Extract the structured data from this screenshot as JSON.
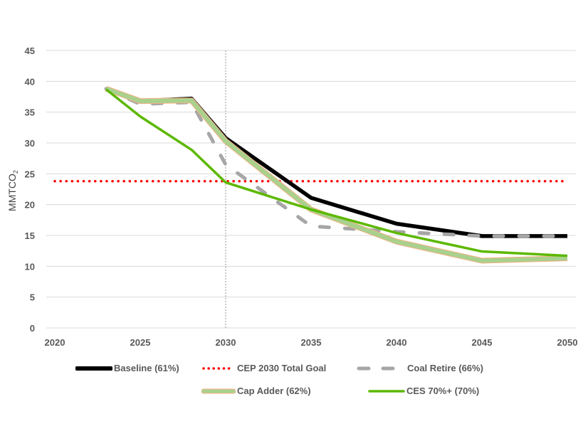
{
  "chart_data": {
    "type": "line",
    "title": "",
    "xlabel": "",
    "ylabel": "MMTCO",
    "ylabel_sub": "2",
    "xlim": [
      2020,
      2050
    ],
    "ylim": [
      0,
      45
    ],
    "x_ticks": [
      "2020",
      "2025",
      "2030",
      "2035",
      "2040",
      "2045",
      "2050"
    ],
    "y_ticks": [
      "0",
      "5",
      "10",
      "15",
      "20",
      "25",
      "30",
      "35",
      "40",
      "45"
    ],
    "grid": true,
    "legend_position": "bottom",
    "reference_vline": 2030,
    "x": [
      2023,
      2025,
      2028,
      2030,
      2035,
      2040,
      2045,
      2050
    ],
    "series": [
      {
        "name": "Baseline (61%)",
        "color": "#000000",
        "style": "solid",
        "values": [
          38.8,
          36.8,
          37.2,
          30.8,
          21.1,
          16.9,
          14.9,
          14.9
        ]
      },
      {
        "name": "CEP 2030 Total Goal",
        "color": "#ff0000",
        "style": "dotted",
        "values": [
          23.8,
          23.8,
          23.8,
          23.8,
          23.8,
          23.8,
          23.8,
          23.8
        ]
      },
      {
        "name": "Coal Retire (66%)",
        "color": "#a6a6a6",
        "style": "dashed",
        "values": [
          38.8,
          36.3,
          36.6,
          26.5,
          16.5,
          15.6,
          14.9,
          14.9
        ]
      },
      {
        "name": "Cap Adder (62%)",
        "color": "#a9d18e",
        "style": "solid-thick",
        "values": [
          38.8,
          36.8,
          36.9,
          30.3,
          19.2,
          14.0,
          10.9,
          11.3
        ]
      },
      {
        "name": "CES 70%+ (70%)",
        "color": "#5cb800",
        "style": "solid",
        "values": [
          38.7,
          34.3,
          28.9,
          23.6,
          19.2,
          15.4,
          12.4,
          11.7
        ]
      }
    ]
  }
}
